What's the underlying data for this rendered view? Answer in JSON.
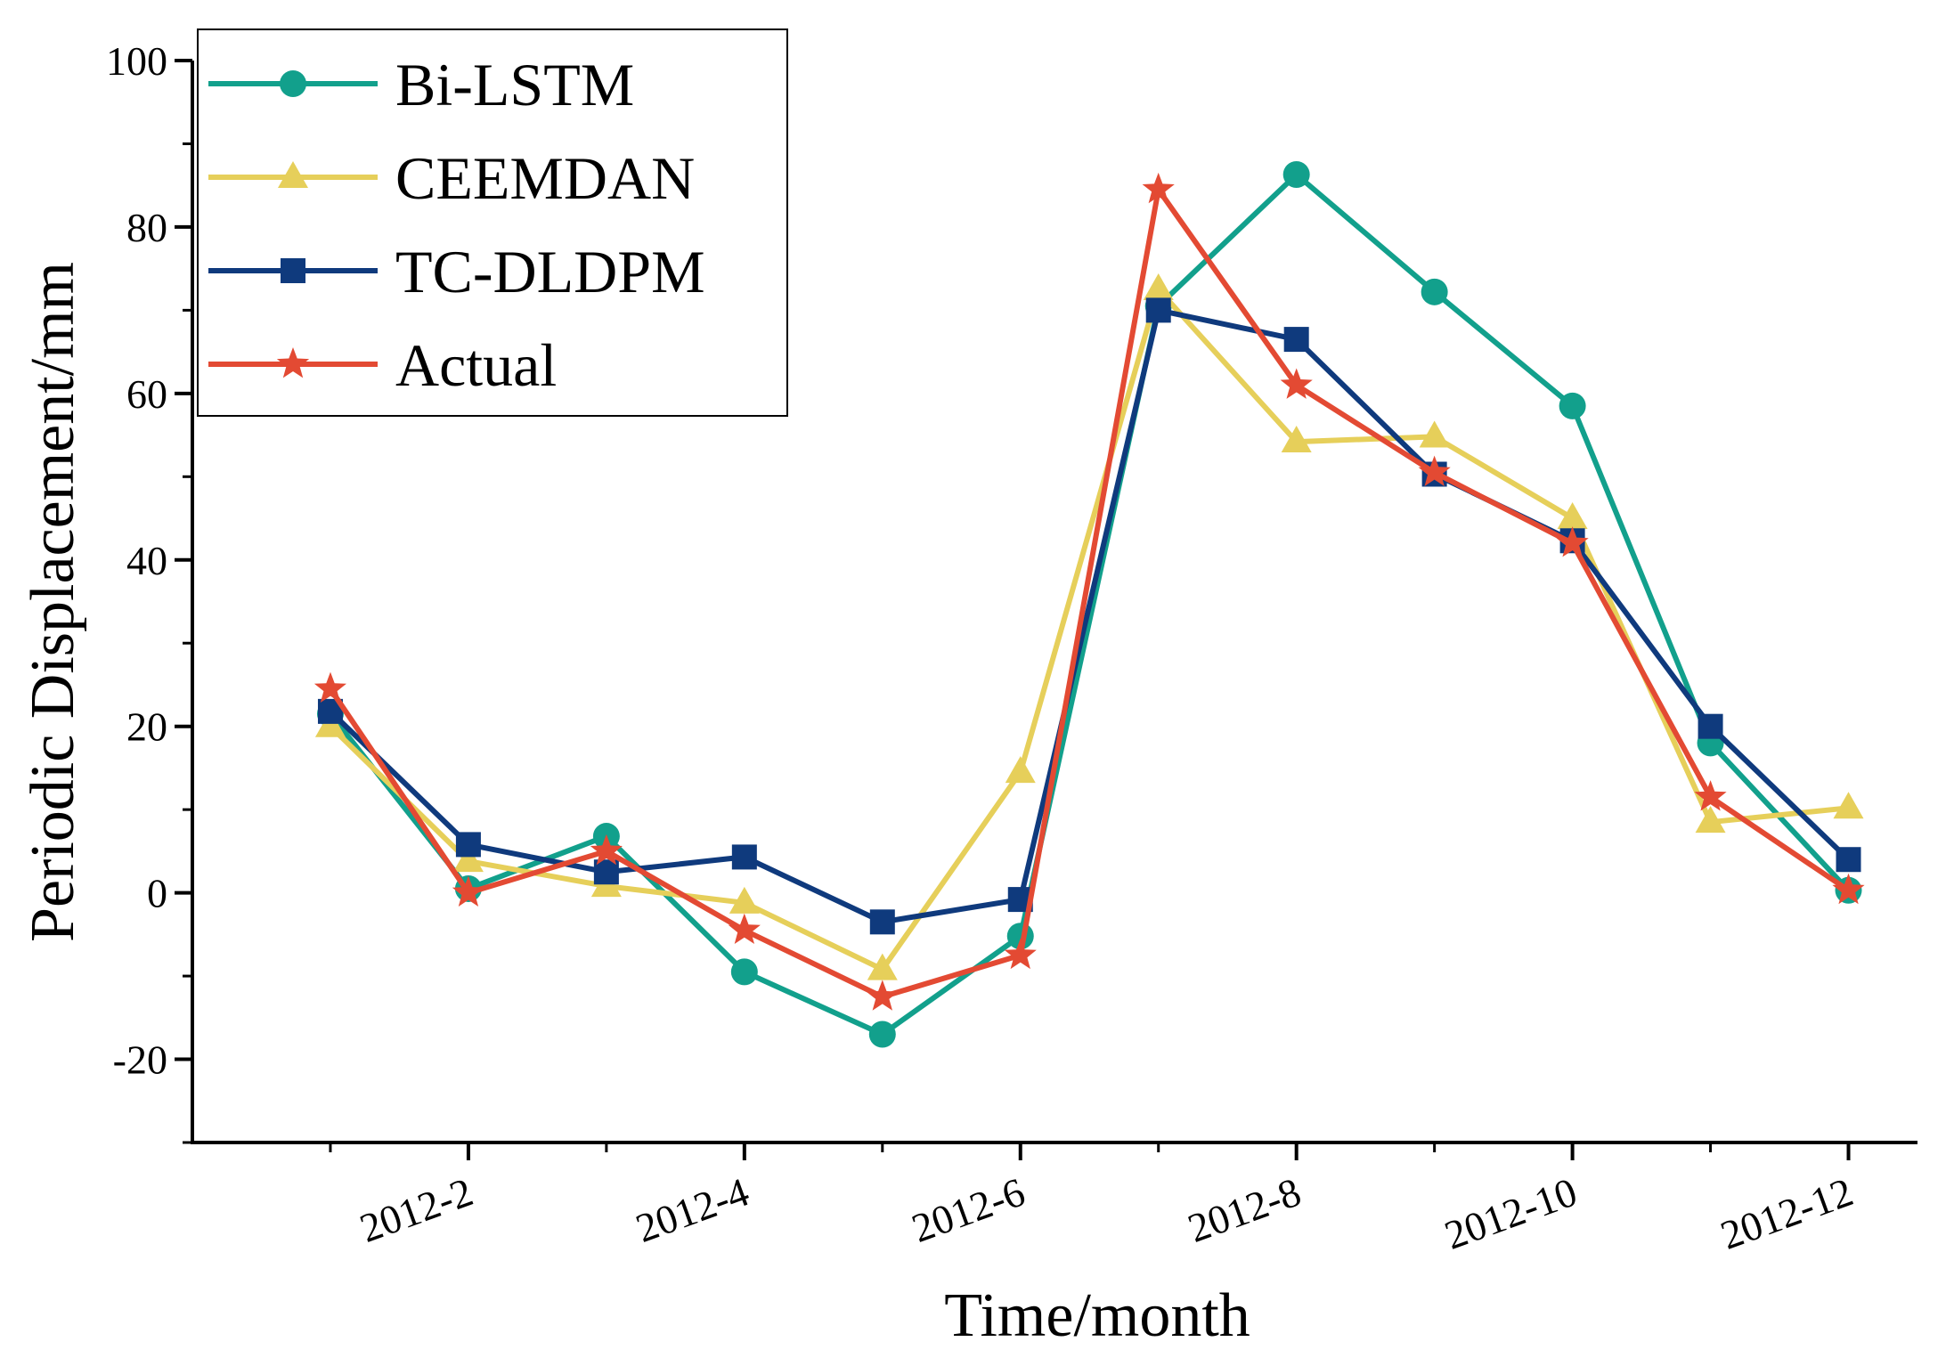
{
  "chart_data": {
    "type": "line",
    "xlabel": "Time/month",
    "ylabel": "Periodic Displacement/mm",
    "x_tick_labels": [
      "2012-2",
      "2012-4",
      "2012-6",
      "2012-8",
      "2012-10",
      "2012-12"
    ],
    "x_tick_months": [
      2,
      4,
      6,
      8,
      10,
      12
    ],
    "xlim": [
      0,
      12.5
    ],
    "ylim": [
      -30,
      100
    ],
    "y_ticks": [
      -20,
      0,
      20,
      40,
      60,
      80,
      100
    ],
    "y_tick_labels": [
      "-20",
      "0",
      "20",
      "40",
      "60",
      "80",
      "100"
    ],
    "legend_position": "top-left",
    "grid": false,
    "x": [
      1,
      2,
      3,
      4,
      5,
      6,
      7,
      8,
      9,
      10,
      11,
      12
    ],
    "series": [
      {
        "name": "Bi-LSTM",
        "color": "#12A08C",
        "marker": "circle",
        "values": [
          21.5,
          0.5,
          6.8,
          -9.5,
          -17,
          -5.2,
          70.5,
          86.3,
          72.2,
          58.5,
          18,
          0.3
        ]
      },
      {
        "name": "CEEMDAN",
        "color": "#E6CF5A",
        "marker": "triangle",
        "values": [
          20,
          3.8,
          0.8,
          -1.2,
          -9.2,
          14.5,
          72.5,
          54.2,
          54.8,
          45,
          8.5,
          10.2
        ]
      },
      {
        "name": "TC-DLDPM",
        "color": "#0F3A7D",
        "marker": "square",
        "values": [
          21.8,
          5.8,
          2.5,
          4.3,
          -3.5,
          -0.8,
          70,
          66.5,
          50.3,
          42.3,
          20,
          4
        ]
      },
      {
        "name": "Actual",
        "color": "#E34A33",
        "marker": "star",
        "values": [
          24.5,
          0,
          5,
          -4.5,
          -12.5,
          -7.5,
          84.5,
          61,
          50.5,
          42,
          11.5,
          0.3
        ]
      }
    ]
  }
}
